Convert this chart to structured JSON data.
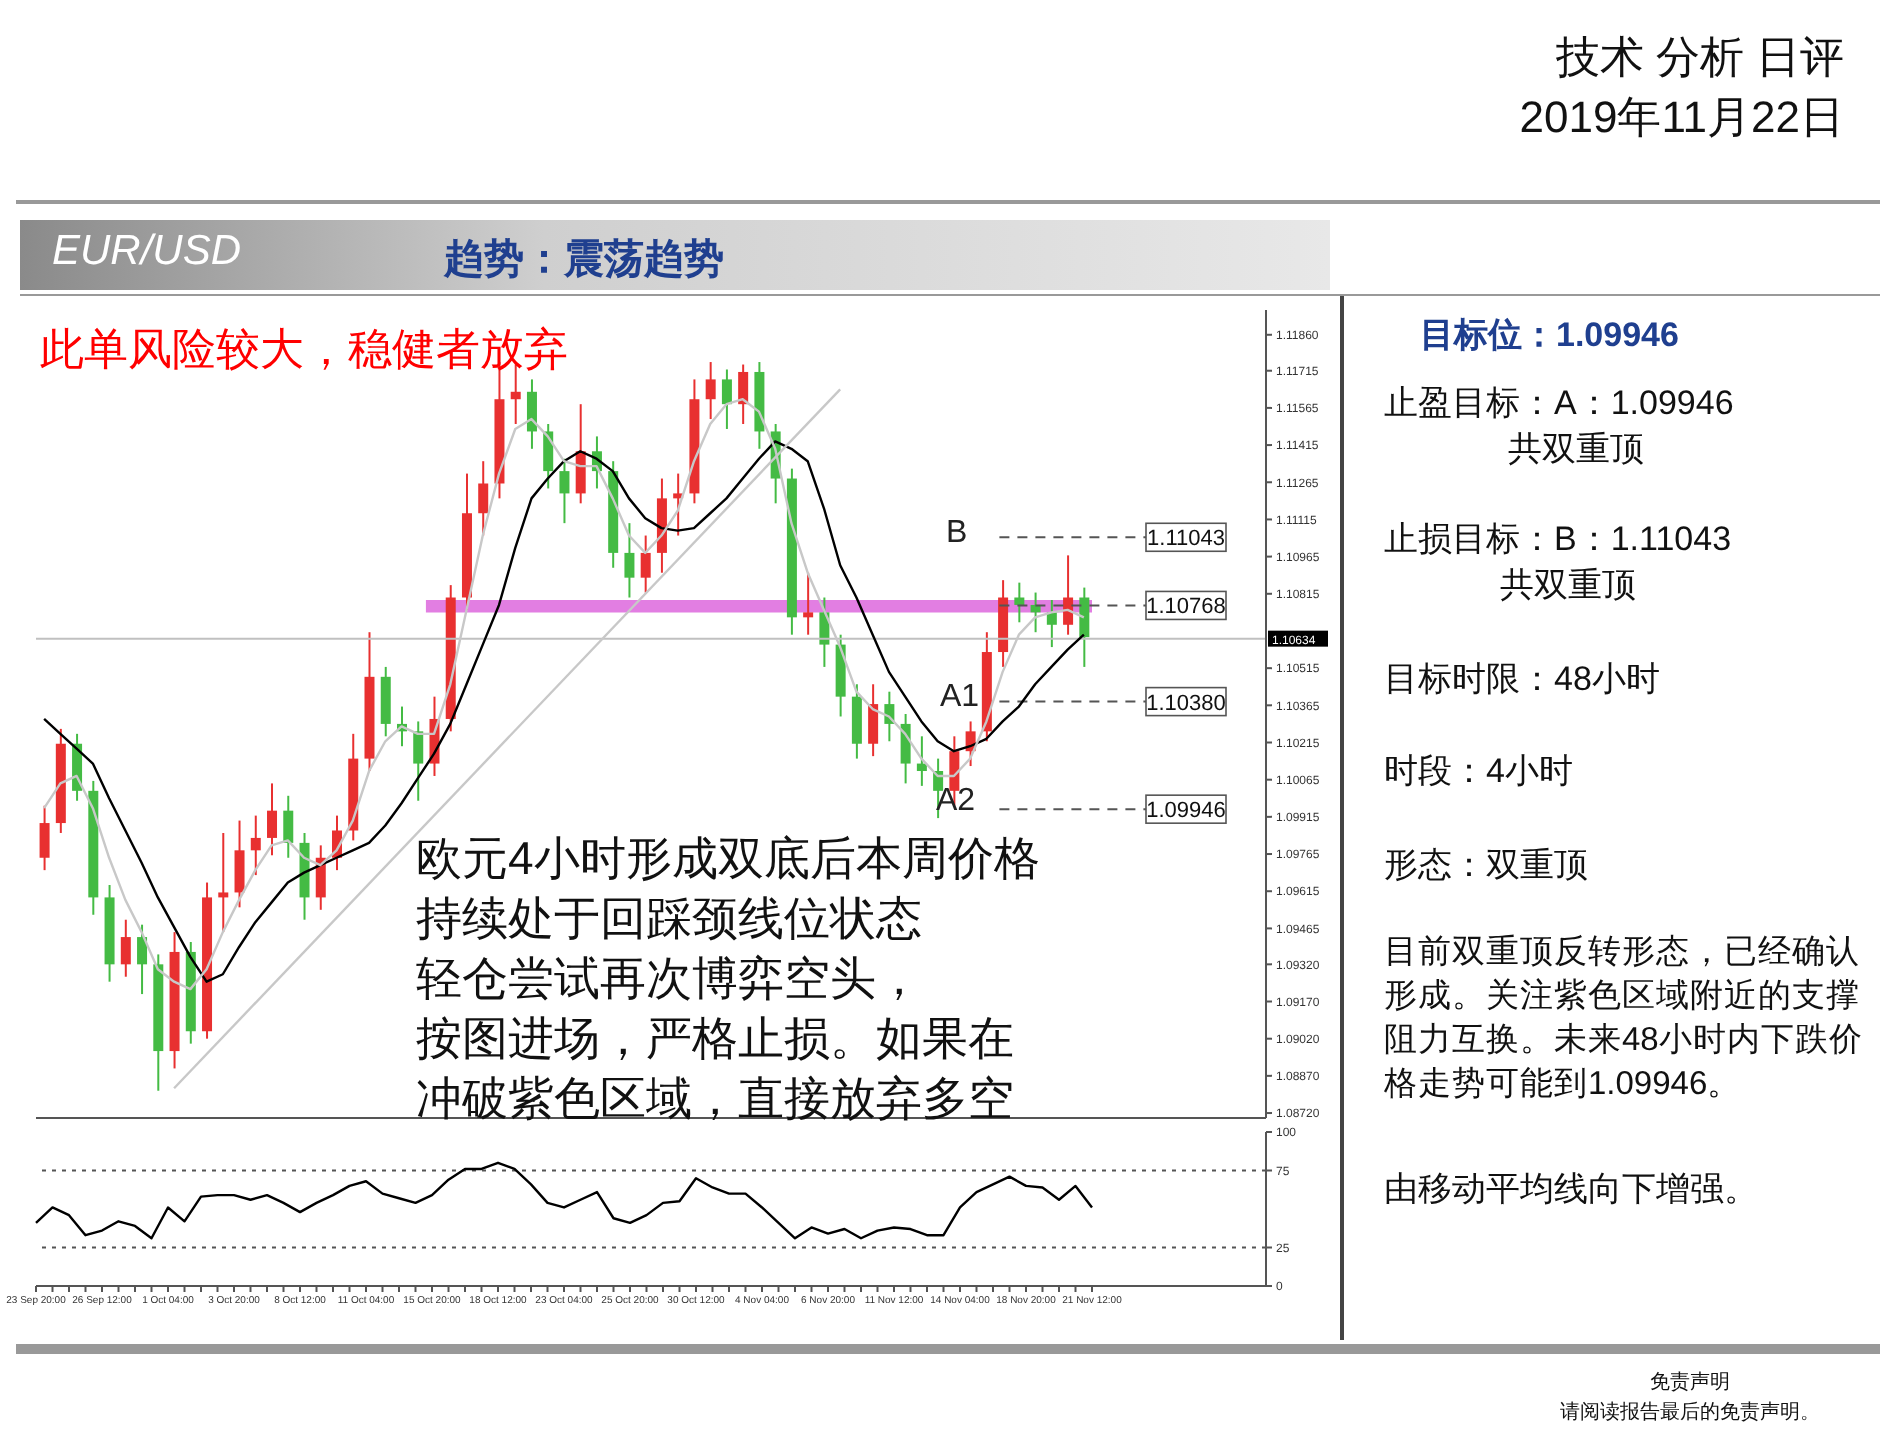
{
  "chart_data": [
    {
      "type": "candlestick",
      "categories": [
        null,
        null,
        null,
        null,
        null,
        null,
        null,
        null,
        null,
        null,
        null,
        null,
        null,
        null,
        null,
        null,
        null,
        null,
        null,
        null,
        null,
        null,
        null,
        null,
        null,
        null,
        null,
        null,
        null,
        null,
        null,
        null,
        null,
        null,
        null,
        null,
        null,
        null,
        null,
        null,
        null,
        null,
        null,
        null,
        null,
        null,
        null,
        null,
        null,
        null,
        null,
        null,
        null,
        null,
        null,
        null,
        null,
        null,
        null,
        null,
        null,
        null,
        null,
        null,
        null
      ],
      "ohlc": [
        [
          1.0975,
          1.0996,
          1.097,
          1.0989
        ],
        [
          1.0989,
          1.1027,
          1.0985,
          1.1021
        ],
        [
          1.1021,
          1.1025,
          1.0998,
          1.1002
        ],
        [
          1.1002,
          1.1006,
          1.0952,
          1.0959
        ],
        [
          1.0959,
          1.0964,
          1.0925,
          1.0932
        ],
        [
          1.0932,
          1.095,
          1.0927,
          1.0943
        ],
        [
          1.0943,
          1.0948,
          1.092,
          1.0932
        ],
        [
          1.0932,
          1.0936,
          1.0881,
          1.0897
        ],
        [
          1.0897,
          1.0945,
          1.089,
          1.0937
        ],
        [
          1.0937,
          1.0941,
          1.09,
          1.0905
        ],
        [
          1.0905,
          1.0965,
          1.0902,
          1.0959
        ],
        [
          1.0959,
          1.0985,
          1.0945,
          1.0961
        ],
        [
          1.0961,
          1.099,
          1.0955,
          1.0978
        ],
        [
          1.0978,
          1.0992,
          1.0968,
          1.0983
        ],
        [
          1.0983,
          1.1005,
          1.0976,
          1.0994
        ],
        [
          1.0994,
          1.1,
          1.0975,
          1.0981
        ],
        [
          1.0981,
          1.0985,
          1.095,
          1.0959
        ],
        [
          1.0959,
          1.098,
          1.0954,
          1.0975
        ],
        [
          1.0975,
          1.0992,
          1.097,
          1.0986
        ],
        [
          1.0986,
          1.1025,
          1.0982,
          1.1015
        ],
        [
          1.1015,
          1.1066,
          1.101,
          1.1048
        ],
        [
          1.1048,
          1.1052,
          1.1024,
          1.1029
        ],
        [
          1.1029,
          1.1036,
          1.102,
          1.1026
        ],
        [
          1.1026,
          1.103,
          1.0998,
          1.1013
        ],
        [
          1.1013,
          1.104,
          1.1008,
          1.1031
        ],
        [
          1.1031,
          1.1085,
          1.1026,
          1.108
        ],
        [
          1.108,
          1.113,
          1.1075,
          1.1114
        ],
        [
          1.1114,
          1.1135,
          1.1105,
          1.1126
        ],
        [
          1.1126,
          1.1175,
          1.112,
          1.116
        ],
        [
          1.116,
          1.1174,
          1.115,
          1.1163
        ],
        [
          1.1163,
          1.1168,
          1.114,
          1.1147
        ],
        [
          1.1147,
          1.115,
          1.1124,
          1.1131
        ],
        [
          1.1131,
          1.1136,
          1.111,
          1.1122
        ],
        [
          1.1122,
          1.1158,
          1.1118,
          1.1139
        ],
        [
          1.1139,
          1.1145,
          1.1124,
          1.1131
        ],
        [
          1.1131,
          1.1135,
          1.1092,
          1.1098
        ],
        [
          1.1098,
          1.111,
          1.108,
          1.1088
        ],
        [
          1.1088,
          1.1105,
          1.1082,
          1.1098
        ],
        [
          1.1098,
          1.1128,
          1.109,
          1.112
        ],
        [
          1.112,
          1.113,
          1.1105,
          1.1122
        ],
        [
          1.1122,
          1.1168,
          1.1118,
          1.116
        ],
        [
          1.116,
          1.1175,
          1.1152,
          1.1168
        ],
        [
          1.1168,
          1.1172,
          1.1148,
          1.1158
        ],
        [
          1.1158,
          1.1174,
          1.115,
          1.1171
        ],
        [
          1.1171,
          1.1175,
          1.114,
          1.1147
        ],
        [
          1.1147,
          1.115,
          1.1118,
          1.1128
        ],
        [
          1.1128,
          1.1132,
          1.1065,
          1.1072
        ],
        [
          1.1072,
          1.109,
          1.1065,
          1.1074
        ],
        [
          1.1074,
          1.108,
          1.1052,
          1.1061
        ],
        [
          1.1061,
          1.1065,
          1.1032,
          1.104
        ],
        [
          1.104,
          1.1045,
          1.1015,
          1.1021
        ],
        [
          1.1021,
          1.1045,
          1.1016,
          1.1037
        ],
        [
          1.1037,
          1.1042,
          1.1022,
          1.1029
        ],
        [
          1.1029,
          1.1033,
          1.1005,
          1.1013
        ],
        [
          1.1013,
          1.1024,
          1.1004,
          1.101
        ],
        [
          1.101,
          1.1015,
          1.0991,
          1.1002
        ],
        [
          1.1002,
          1.1024,
          1.0996,
          1.1018
        ],
        [
          1.1018,
          1.103,
          1.1012,
          1.1026
        ],
        [
          1.1026,
          1.1066,
          1.1022,
          1.1058
        ],
        [
          1.1058,
          1.1087,
          1.1052,
          1.108
        ],
        [
          1.108,
          1.1086,
          1.107,
          1.1077
        ],
        [
          1.1077,
          1.1082,
          1.1066,
          1.1074
        ],
        [
          1.1074,
          1.1079,
          1.106,
          1.1069
        ],
        [
          1.1069,
          1.1097,
          1.1065,
          1.108
        ],
        [
          1.108,
          1.1084,
          1.1052,
          1.1064
        ]
      ],
      "colors": [
        "#e83030",
        "#e83030",
        "#44bb44",
        "#44bb44",
        "#44bb44",
        "#e83030",
        "#44bb44",
        "#44bb44",
        "#e83030",
        "#44bb44",
        "#e83030",
        "#e83030",
        "#e83030",
        "#e83030",
        "#e83030",
        "#44bb44",
        "#44bb44",
        "#e83030",
        "#e83030",
        "#e83030",
        "#e83030",
        "#44bb44",
        "#44bb44",
        "#44bb44",
        "#e83030",
        "#e83030",
        "#e83030",
        "#e83030",
        "#e83030",
        "#e83030",
        "#44bb44",
        "#44bb44",
        "#44bb44",
        "#e83030",
        "#44bb44",
        "#44bb44",
        "#44bb44",
        "#e83030",
        "#e83030",
        "#e83030",
        "#e83030",
        "#e83030",
        "#44bb44",
        "#e83030",
        "#44bb44",
        "#44bb44",
        "#44bb44",
        "#e83030",
        "#44bb44",
        "#44bb44",
        "#44bb44",
        "#e83030",
        "#44bb44",
        "#44bb44",
        "#44bb44",
        "#44bb44",
        "#e83030",
        "#e83030",
        "#e83030",
        "#e83030",
        "#44bb44",
        "#44bb44",
        "#44bb44",
        "#e83030",
        "#44bb44"
      ],
      "series": [
        {
          "type": "line",
          "color": "#000000",
          "values": [
            1.1031,
            1.1025,
            1.1019,
            1.1013,
            1.0999,
            1.0986,
            1.0973,
            1.0959,
            1.0947,
            1.0935,
            1.0925,
            1.0928,
            1.0939,
            1.0949,
            1.0957,
            1.0965,
            1.0969,
            1.0972,
            1.0975,
            1.0978,
            1.0981,
            1.0988,
            1.0997,
            1.1007,
            1.1017,
            1.1029,
            1.1045,
            1.1061,
            1.1077,
            1.11,
            1.112,
            1.1128,
            1.1135,
            1.1139,
            1.1136,
            1.1131,
            1.112,
            1.1112,
            1.1108,
            1.1107,
            1.1108,
            1.1114,
            1.112,
            1.1128,
            1.1136,
            1.1143,
            1.114,
            1.1135,
            1.1116,
            1.1093,
            1.108,
            1.1065,
            1.105,
            1.104,
            1.103,
            1.1022,
            1.1018,
            1.102,
            1.1023,
            1.103,
            1.1036,
            1.1045,
            1.1052,
            1.1059,
            1.1065
          ]
        },
        {
          "type": "line",
          "color": "#c8c8c8",
          "values": [
            1.0995,
            1.1005,
            1.1008,
            1.0995,
            1.0975,
            1.0958,
            1.0945,
            1.093,
            1.0925,
            1.0922,
            1.093,
            1.0945,
            1.0958,
            1.097,
            1.098,
            1.0982,
            1.0975,
            1.0972,
            1.0978,
            1.099,
            1.101,
            1.1022,
            1.1028,
            1.1025,
            1.1025,
            1.1045,
            1.1075,
            1.1105,
            1.113,
            1.1148,
            1.1152,
            1.1145,
            1.1135,
            1.1133,
            1.1133,
            1.112,
            1.1105,
            1.1098,
            1.1105,
            1.1115,
            1.1135,
            1.115,
            1.1158,
            1.116,
            1.1155,
            1.114,
            1.111,
            1.109,
            1.1075,
            1.106,
            1.1042,
            1.1035,
            1.1032,
            1.1025,
            1.1015,
            1.1008,
            1.1008,
            1.1015,
            1.103,
            1.105,
            1.1065,
            1.1072,
            1.1074,
            1.1075,
            1.1072
          ]
        },
        {
          "type": "line",
          "color": "#c8c8c8",
          "values": [
            null,
            null,
            null,
            null,
            null,
            null,
            null,
            null,
            1.0882,
            null,
            null,
            null,
            null,
            null,
            null,
            null,
            null,
            null,
            null,
            null,
            null,
            null,
            null,
            null,
            null,
            null,
            null,
            null,
            null,
            null,
            null,
            null,
            null,
            null,
            null,
            null,
            null,
            null,
            null,
            null,
            null,
            null,
            null,
            null,
            null,
            null,
            null,
            null,
            null,
            1.1164,
            null,
            null,
            null,
            null,
            null,
            null,
            null,
            null,
            null,
            null,
            null,
            null,
            null,
            null,
            null
          ]
        }
      ],
      "ylim": [
        1.087,
        1.1196
      ],
      "yticks": [
        {
          "value": 1.0872,
          "label": "1.08720"
        },
        {
          "value": 1.0887,
          "label": "1.08870"
        },
        {
          "value": 1.0902,
          "label": "1.09020"
        },
        {
          "value": 1.0917,
          "label": "1.09170"
        },
        {
          "value": 1.0932,
          "label": "1.09320"
        },
        {
          "value": 1.09465,
          "label": "1.09465"
        },
        {
          "value": 1.09615,
          "label": "1.09615"
        },
        {
          "value": 1.09765,
          "label": "1.09765"
        },
        {
          "value": 1.09915,
          "label": "1.09915"
        },
        {
          "value": 1.10065,
          "label": "1.10065"
        },
        {
          "value": 1.10215,
          "label": "1.10215"
        },
        {
          "value": 1.10365,
          "label": "1.10365"
        },
        {
          "value": 1.10515,
          "label": "1.10515"
        },
        {
          "value": 1.10815,
          "label": "1.10815"
        },
        {
          "value": 1.10965,
          "label": "1.10965"
        },
        {
          "value": 1.11115,
          "label": "1.11115"
        },
        {
          "value": 1.11265,
          "label": "1.11265"
        },
        {
          "value": 1.11415,
          "label": "1.11415"
        },
        {
          "value": 1.11565,
          "label": "1.11565"
        },
        {
          "value": 1.11715,
          "label": "1.11715"
        },
        {
          "value": 1.1186,
          "label": "1.11860"
        }
      ],
      "tick_labels": "y",
      "bands": [
        {
          "axis": "y",
          "from": 1.1074,
          "to": 1.1079,
          "color": "#e27ee2"
        }
      ],
      "ref_lines": [
        {
          "axis": "y",
          "value": 1.11043,
          "label": "1.11043",
          "color": "#555555",
          "line_style": "dashed"
        },
        {
          "axis": "y",
          "value": 1.10768,
          "label": "1.10768",
          "color": "#555555",
          "line_style": "dashed"
        },
        {
          "axis": "y",
          "value": 1.1038,
          "label": "1.10380",
          "color": "#555555",
          "line_style": "dashed"
        },
        {
          "axis": "y",
          "value": 1.09946,
          "label": "1.09946",
          "color": "#555555",
          "line_style": "dashed"
        },
        {
          "axis": "y",
          "value": 1.10634,
          "label": "1.10634",
          "color": "#c0c0c0",
          "line_style": "solid"
        }
      ],
      "annotations": [
        "技术 分析 日评",
        "2019年11月22日",
        "EUR/USD",
        "趋势：震荡趋势",
        "此单风险较大，稳健者放弃",
        "欧元4小时形成双底后本周价格",
        "持续处于回踩颈线位状态",
        "轻仓尝试再次博弈空头，",
        "按图进场，严格止损。如果在",
        "冲破紫色区域，直接放弃多空",
        "目标位：1.09946",
        "止盈目标：A：1.09946",
        "共双重顶",
        "止损目标：B：1.11043",
        "共双重顶",
        "目标时限：48小时",
        "时段：4小时",
        "形态：双重顶",
        "目前双重顶反转形态，已经确认形成。关注紫色区域附近的支撑阻力互换。未来48小时内下跌价格走势可能到1.09946。",
        "由移动平均线向下增强。",
        "免责声明",
        "请阅读报告最后的免责声明。",
        "B",
        "A1",
        "A2"
      ]
    },
    {
      "type": "line",
      "categories": [
        "23 Sep 20:00",
        null,
        null,
        null,
        "26 Sep 12:00",
        null,
        null,
        null,
        "1 Oct 04:00",
        null,
        null,
        null,
        "3 Oct 20:00",
        null,
        null,
        null,
        "8 Oct 12:00",
        null,
        null,
        null,
        "11 Oct 04:00",
        null,
        null,
        null,
        "15 Oct 20:00",
        null,
        null,
        null,
        "18 Oct 12:00",
        null,
        null,
        null,
        "23 Oct 04:00",
        null,
        null,
        null,
        "25 Oct 20:00",
        null,
        null,
        null,
        "30 Oct 12:00",
        null,
        null,
        null,
        "4 Nov 04:00",
        null,
        null,
        null,
        "6 Nov 20:00",
        null,
        null,
        null,
        "11 Nov 12:00",
        null,
        null,
        null,
        "14 Nov 04:00",
        null,
        null,
        null,
        "18 Nov 20:00",
        null,
        null,
        null,
        "21 Nov 12:00"
      ],
      "values": [
        41,
        51,
        46,
        33,
        36,
        42,
        39,
        31,
        51,
        42,
        58,
        59,
        59,
        56,
        59,
        54,
        48,
        54,
        59,
        65,
        68,
        60,
        57,
        54,
        59,
        69,
        76,
        76,
        80,
        76,
        66,
        54,
        51,
        56,
        61,
        44,
        41,
        46,
        54,
        55,
        70,
        64,
        60,
        60,
        51,
        41,
        31,
        38,
        34,
        37,
        31,
        36,
        38,
        37,
        33,
        33,
        51,
        61,
        66,
        71,
        65,
        64,
        56,
        65,
        51
      ],
      "color": "#000000",
      "ylim": [
        0,
        100
      ],
      "yticks": [
        0,
        25,
        75,
        100
      ],
      "ref_lines": [
        {
          "axis": "y",
          "value": 25,
          "color": "#555555",
          "line_style": "dotted"
        },
        {
          "axis": "y",
          "value": 75,
          "color": "#555555",
          "line_style": "dotted"
        }
      ]
    }
  ]
}
